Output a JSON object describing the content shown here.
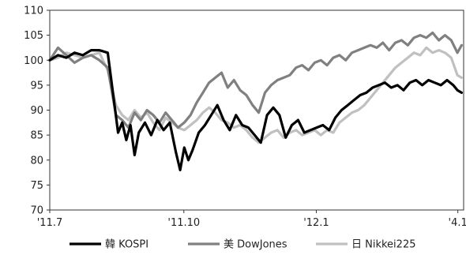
{
  "chart_data": {
    "type": "line",
    "title": "",
    "xlabel": "",
    "ylabel": "",
    "ylim": [
      70,
      110
    ],
    "xlim": [
      0,
      100
    ],
    "y_ticks": [
      70,
      75,
      80,
      85,
      90,
      95,
      100,
      105,
      110
    ],
    "x_ticks": [
      {
        "x": 0,
        "label": "'11.7"
      },
      {
        "x": 32.4,
        "label": "'11.10"
      },
      {
        "x": 64.4,
        "label": "'12.1"
      },
      {
        "x": 98.6,
        "label": "'4.1"
      }
    ],
    "grid": false,
    "legend": "bottom",
    "series": [
      {
        "name": "韓 KOSPI",
        "color": "#000000",
        "width": 3.2,
        "x": [
          0,
          2,
          4,
          6,
          8,
          10,
          12,
          14,
          15.5,
          16.5,
          17.5,
          18.5,
          19.5,
          20.5,
          21.5,
          23,
          24.5,
          26,
          27.5,
          29,
          30.5,
          31.5,
          32.5,
          33.5,
          34.5,
          36,
          37.5,
          39,
          40.5,
          42,
          43.5,
          45,
          46.5,
          48,
          49.5,
          51,
          52.5,
          54,
          55.5,
          57,
          58.5,
          60,
          61.5,
          63,
          64.5,
          66,
          67.5,
          69,
          70.5,
          72,
          73.5,
          75,
          76.5,
          78,
          79.5,
          81,
          82.5,
          84,
          85.5,
          87,
          88.5,
          90,
          91.5,
          93,
          94.5,
          96,
          97.5,
          98.5,
          99.5
        ],
        "y": [
          100.0,
          101.0,
          100.5,
          101.5,
          101.0,
          102.0,
          102.0,
          101.5,
          92.0,
          85.5,
          87.5,
          84.0,
          87.0,
          81.0,
          85.5,
          87.5,
          85.0,
          88.0,
          86.0,
          87.5,
          81.5,
          78.0,
          82.5,
          80.0,
          82.0,
          85.5,
          87.0,
          89.0,
          91.0,
          88.0,
          86.0,
          89.0,
          87.0,
          86.5,
          85.0,
          83.5,
          89.0,
          90.5,
          89.0,
          84.5,
          87.0,
          88.0,
          85.5,
          86.0,
          86.5,
          87.0,
          86.0,
          88.5,
          90.0,
          91.0,
          92.0,
          93.0,
          93.5,
          94.5,
          95.0,
          95.5,
          94.5,
          95.0,
          94.0,
          95.5,
          96.0,
          95.0,
          96.0,
          95.5,
          95.0,
          96.0,
          95.0,
          94.0,
          93.5
        ]
      },
      {
        "name": "美 DowJones",
        "color": "#808080",
        "width": 3.2,
        "x": [
          0,
          2,
          4,
          6,
          8,
          10,
          12,
          14,
          16,
          17.5,
          19,
          20.5,
          22,
          23.5,
          25,
          26.5,
          28,
          29.5,
          31,
          32.5,
          34,
          35.5,
          37,
          38.5,
          40,
          41.5,
          43,
          44.5,
          46,
          47.5,
          49,
          50.5,
          52,
          53.5,
          55,
          56.5,
          58,
          59.5,
          61,
          62.5,
          64,
          65.5,
          67,
          68.5,
          70,
          71.5,
          73,
          74.5,
          76,
          77.5,
          79,
          80.5,
          82,
          83.5,
          85,
          86.5,
          88,
          89.5,
          91,
          92.5,
          94,
          95.5,
          97,
          98.5,
          99.5
        ],
        "y": [
          100.0,
          102.5,
          101.0,
          99.5,
          100.5,
          101.0,
          100.0,
          98.5,
          89.0,
          88.0,
          86.5,
          89.5,
          88.0,
          90.0,
          89.0,
          87.5,
          89.5,
          88.0,
          86.5,
          87.5,
          89.0,
          91.5,
          93.5,
          95.5,
          96.5,
          97.5,
          94.5,
          96.0,
          94.0,
          93.0,
          91.0,
          89.5,
          93.5,
          95.0,
          96.0,
          96.5,
          97.0,
          98.5,
          99.0,
          98.0,
          99.5,
          100.0,
          99.0,
          100.5,
          101.0,
          100.0,
          101.5,
          102.0,
          102.5,
          103.0,
          102.5,
          103.5,
          102.0,
          103.5,
          104.0,
          103.0,
          104.5,
          105.0,
          104.5,
          105.5,
          104.0,
          105.0,
          104.0,
          101.5,
          103.0
        ]
      },
      {
        "name": "日 Nikkei225",
        "color": "#c0c0c0",
        "width": 3.2,
        "x": [
          0,
          2,
          4,
          6,
          8,
          10,
          12,
          14,
          16,
          17.5,
          19,
          20.5,
          22,
          23.5,
          25,
          26.5,
          28,
          29.5,
          31,
          32.5,
          34,
          35.5,
          37,
          38.5,
          40,
          41.5,
          43,
          44.5,
          46,
          47.5,
          49,
          50.5,
          52,
          53.5,
          55,
          56.5,
          58,
          59.5,
          61,
          62.5,
          64,
          65.5,
          67,
          68.5,
          70,
          71.5,
          73,
          74.5,
          76,
          77.5,
          79,
          80.5,
          82,
          83.5,
          85,
          86.5,
          88,
          89.5,
          91,
          92.5,
          94,
          95.5,
          97,
          98.5,
          99.5
        ],
        "y": [
          100.0,
          100.5,
          101.5,
          101.0,
          100.5,
          101.0,
          101.5,
          98.0,
          91.0,
          89.0,
          88.0,
          90.0,
          88.5,
          89.5,
          87.5,
          86.0,
          88.5,
          87.5,
          86.5,
          86.0,
          87.0,
          88.0,
          89.5,
          90.5,
          89.5,
          88.0,
          87.5,
          86.5,
          87.0,
          86.0,
          84.5,
          83.5,
          84.5,
          85.5,
          86.0,
          84.5,
          85.5,
          86.0,
          85.0,
          85.5,
          86.0,
          85.0,
          86.0,
          85.5,
          87.5,
          88.5,
          89.5,
          90.0,
          91.0,
          92.5,
          94.0,
          95.5,
          97.0,
          98.5,
          99.5,
          100.5,
          101.5,
          101.0,
          102.5,
          101.5,
          102.0,
          101.5,
          100.5,
          97.0,
          96.5
        ]
      }
    ]
  }
}
